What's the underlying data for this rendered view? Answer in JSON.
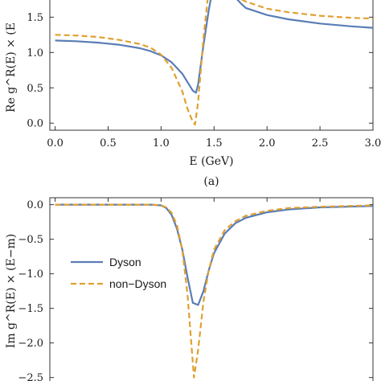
{
  "chart_data": [
    {
      "type": "line",
      "panel": "top",
      "caption": "(a)",
      "ylabel": "Re g^R(E) × (E",
      "xlabel": "E (GeV)",
      "xlim": [
        -0.05,
        3.0
      ],
      "ylim": [
        -0.1,
        1.8
      ],
      "x_ticks": [
        "0.0",
        "0.5",
        "1.0",
        "1.5",
        "2.0",
        "2.5",
        "3.0"
      ],
      "y_ticks": [
        "0.0",
        "0.5",
        "1.0",
        "1.5"
      ],
      "series": [
        {
          "name": "Dyson",
          "color": "#5a7db5",
          "dash": "solid",
          "x": [
            0.0,
            0.2,
            0.4,
            0.6,
            0.8,
            0.9,
            1.0,
            1.1,
            1.2,
            1.25,
            1.3,
            1.33,
            1.35,
            1.4,
            1.45,
            1.5,
            1.55,
            1.6,
            1.65,
            1.7,
            1.75,
            1.8,
            2.0,
            2.2,
            2.5,
            2.8,
            3.0
          ],
          "y": [
            1.17,
            1.16,
            1.14,
            1.11,
            1.06,
            1.02,
            0.96,
            0.86,
            0.7,
            0.58,
            0.46,
            0.43,
            0.55,
            1.1,
            1.6,
            2.0,
            2.05,
            1.95,
            1.85,
            1.78,
            1.7,
            1.63,
            1.53,
            1.47,
            1.41,
            1.37,
            1.35
          ]
        },
        {
          "name": "non-Dyson",
          "color": "#e0a030",
          "dash": "dashed",
          "x": [
            0.0,
            0.2,
            0.4,
            0.6,
            0.8,
            0.9,
            1.0,
            1.1,
            1.2,
            1.25,
            1.3,
            1.32,
            1.35,
            1.4,
            1.45,
            1.5,
            1.55,
            1.6,
            1.7,
            1.8,
            2.0,
            2.2,
            2.5,
            2.8,
            3.0
          ],
          "y": [
            1.25,
            1.24,
            1.22,
            1.18,
            1.12,
            1.07,
            0.97,
            0.78,
            0.45,
            0.2,
            0.02,
            -0.02,
            0.3,
            1.2,
            1.9,
            2.2,
            2.1,
            1.95,
            1.8,
            1.72,
            1.62,
            1.57,
            1.52,
            1.49,
            1.48
          ]
        }
      ]
    },
    {
      "type": "line",
      "panel": "bottom",
      "ylabel": "Im g^R(E) × (E−m)",
      "xlim": [
        -0.05,
        3.0
      ],
      "ylim": [
        -2.55,
        0.1
      ],
      "y_ticks": [
        "0.0",
        "−0.5",
        "−1.0",
        "−1.5",
        "−2.0",
        "−2.5"
      ],
      "legend": {
        "placement": "left",
        "entries": [
          "Dyson",
          "non−Dyson"
        ]
      },
      "series": [
        {
          "name": "Dyson",
          "color": "#5a7db5",
          "dash": "solid",
          "x": [
            0.0,
            0.5,
            0.9,
            1.0,
            1.05,
            1.1,
            1.15,
            1.2,
            1.25,
            1.3,
            1.35,
            1.4,
            1.45,
            1.5,
            1.6,
            1.7,
            1.8,
            2.0,
            2.2,
            2.5,
            3.0
          ],
          "y": [
            0.0,
            0.0,
            0.0,
            -0.01,
            -0.05,
            -0.15,
            -0.35,
            -0.65,
            -1.05,
            -1.42,
            -1.45,
            -1.25,
            -0.95,
            -0.7,
            -0.42,
            -0.27,
            -0.19,
            -0.11,
            -0.07,
            -0.04,
            -0.02
          ]
        },
        {
          "name": "non-Dyson",
          "color": "#e0a030",
          "dash": "dashed",
          "x": [
            0.0,
            0.5,
            0.9,
            1.0,
            1.05,
            1.1,
            1.15,
            1.2,
            1.25,
            1.28,
            1.31,
            1.35,
            1.4,
            1.45,
            1.5,
            1.6,
            1.7,
            1.8,
            2.0,
            2.2,
            2.5,
            3.0
          ],
          "y": [
            0.0,
            0.0,
            0.0,
            -0.01,
            -0.04,
            -0.12,
            -0.3,
            -0.65,
            -1.3,
            -1.9,
            -2.5,
            -2.1,
            -1.4,
            -0.95,
            -0.65,
            -0.37,
            -0.24,
            -0.16,
            -0.09,
            -0.05,
            -0.03,
            -0.01
          ]
        }
      ]
    }
  ]
}
